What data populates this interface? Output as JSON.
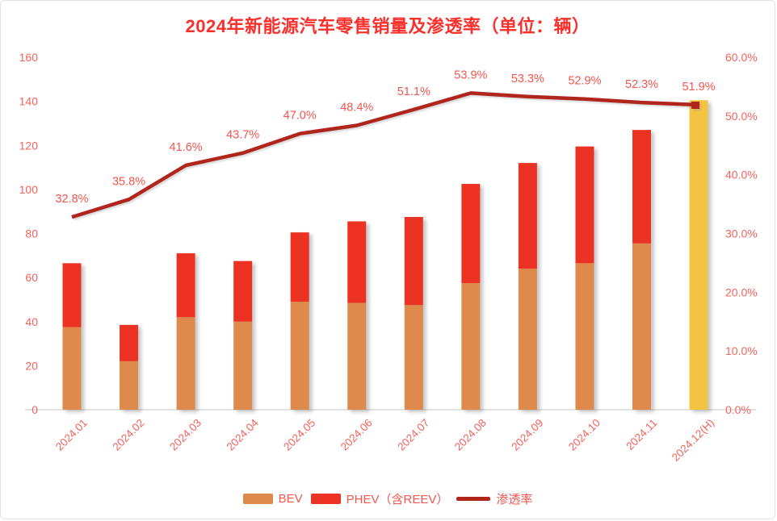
{
  "title": "2024年新能源汽车零售销量及渗透率（单位：辆）",
  "colors": {
    "title": "#fb2f2b",
    "tick_label": "#f4635c",
    "data_label": "#f4554e",
    "bev": "#dd8a4c",
    "phev": "#ec3323",
    "line": "#b1261c",
    "forecast": "#f5c342",
    "baseline": "#d9d9d9",
    "card_border": "#e2e2e2"
  },
  "legend": [
    {
      "label": "BEV",
      "swatch": "bar",
      "color_key": "bev"
    },
    {
      "label": "PHEV（含REEV）",
      "swatch": "bar",
      "color_key": "phev"
    },
    {
      "label": "渗透率",
      "swatch": "line",
      "color_key": "line"
    }
  ],
  "chart_data": {
    "type": "bar",
    "title": "2024年新能源汽车零售销量及渗透率（单位：辆）",
    "categories": [
      "2024.01",
      "2024.02",
      "2024.03",
      "2024.04",
      "2024.05",
      "2024.06",
      "2024.07",
      "2024.08",
      "2024.09",
      "2024.10",
      "2024.11",
      "2024.12(H)"
    ],
    "left_axis": {
      "min": 0,
      "max": 160,
      "step": 20,
      "ticks": [
        "0",
        "20",
        "40",
        "60",
        "80",
        "100",
        "120",
        "140",
        "160"
      ]
    },
    "right_axis": {
      "min": 0,
      "max": 60,
      "step": 10,
      "ticks": [
        "0.0%",
        "10.0%",
        "20.0%",
        "30.0%",
        "40.0%",
        "50.0%",
        "60.0%"
      ]
    },
    "grid": false,
    "legend_position": "bottom",
    "series": [
      {
        "name": "BEV",
        "type": "bar",
        "stack": "sales",
        "values": [
          37.5,
          22,
          42,
          40,
          49,
          48.5,
          47.5,
          57.5,
          64,
          66.5,
          75.5,
          null
        ]
      },
      {
        "name": "PHEV（含REEV）",
        "type": "bar",
        "stack": "sales",
        "values": [
          29,
          16.5,
          29,
          27.5,
          31.5,
          37,
          40,
          45,
          48,
          53,
          51.5,
          null
        ]
      },
      {
        "name": "渗透率",
        "type": "line",
        "axis": "right",
        "values": [
          32.8,
          35.8,
          41.6,
          43.7,
          47.0,
          48.4,
          51.1,
          53.9,
          53.3,
          52.9,
          52.3,
          51.9
        ],
        "labels": [
          "32.8%",
          "35.8%",
          "41.6%",
          "43.7%",
          "47.0%",
          "48.4%",
          "51.1%",
          "53.9%",
          "53.3%",
          "52.9%",
          "52.3%",
          "51.9%"
        ]
      }
    ],
    "forecast_bar": {
      "category": "2024.12(H)",
      "index": 11,
      "value": 140.5
    }
  }
}
